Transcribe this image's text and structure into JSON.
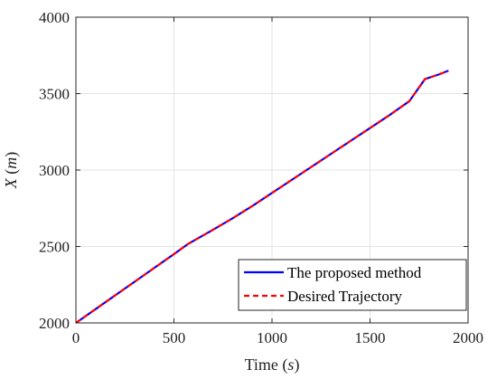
{
  "chart_data": {
    "type": "line",
    "xlabel_text": "Time",
    "xlabel_unit": "s",
    "ylabel_text": "X",
    "ylabel_unit": "m",
    "xlim": [
      0,
      2000
    ],
    "ylim": [
      2000,
      4000
    ],
    "xticks": [
      0,
      500,
      1000,
      1500,
      2000
    ],
    "yticks": [
      2000,
      2500,
      3000,
      3500,
      4000
    ],
    "xtick_labels": [
      "0",
      "500",
      "1000",
      "1500",
      "2000"
    ],
    "ytick_labels": [
      "2000",
      "2500",
      "3000",
      "3500",
      "4000"
    ],
    "grid": true,
    "legend_position": "bottom-right",
    "series": [
      {
        "name": "The proposed method",
        "color": "#0000ff",
        "style": "solid",
        "x": [
          0,
          100,
          200,
          300,
          400,
          500,
          570,
          700,
          800,
          900,
          1000,
          1100,
          1200,
          1300,
          1400,
          1500,
          1600,
          1700,
          1780,
          1850,
          1900
        ],
        "y": [
          2000,
          2090,
          2180,
          2270,
          2360,
          2450,
          2515,
          2610,
          2685,
          2765,
          2850,
          2935,
          3020,
          3105,
          3190,
          3275,
          3360,
          3450,
          3595,
          3625,
          3650
        ]
      },
      {
        "name": "Desired Trajectory",
        "color": "#ff0000",
        "style": "dashed",
        "x": [
          0,
          100,
          200,
          300,
          400,
          500,
          570,
          700,
          800,
          900,
          1000,
          1100,
          1200,
          1300,
          1400,
          1500,
          1600,
          1700,
          1780,
          1850,
          1900
        ],
        "y": [
          2000,
          2090,
          2180,
          2270,
          2360,
          2450,
          2515,
          2610,
          2685,
          2765,
          2850,
          2935,
          3020,
          3105,
          3190,
          3275,
          3360,
          3450,
          3595,
          3625,
          3650
        ]
      }
    ]
  }
}
